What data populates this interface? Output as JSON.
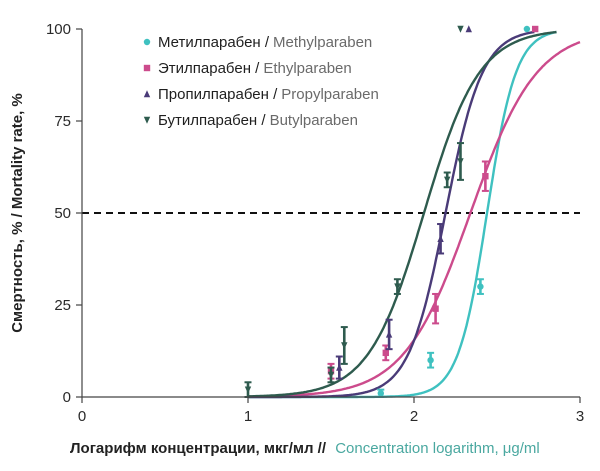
{
  "chart_data": {
    "type": "scatter",
    "xlim": [
      0,
      3
    ],
    "ylim": [
      0,
      100
    ],
    "x_ticks": [
      "0",
      "1",
      "2",
      "3"
    ],
    "y_ticks": [
      "0",
      "25",
      "50",
      "75",
      "100"
    ],
    "xlabel_ru": "Логарифм концентрации, мкг/мл //",
    "xlabel_en": "Concentration logarithm, μg/ml",
    "ylabel": "Смертность, % / Mortality rate, %",
    "reference_line": 50,
    "legend_position": "top-left",
    "series": [
      {
        "name_ru": "Метилпарабен /",
        "name_en": "Methylparaben",
        "color": "#3fc1c0",
        "marker": "circle",
        "curve": {
          "ec50": 2.44,
          "slope": 11.5
        },
        "points": [
          {
            "x": 1.8,
            "y": 1,
            "err": 1
          },
          {
            "x": 2.1,
            "y": 10,
            "err": 2
          },
          {
            "x": 2.4,
            "y": 30,
            "err": 2
          },
          {
            "x": 2.68,
            "y": 100,
            "err": 0
          }
        ]
      },
      {
        "name_ru": "Этилпарабен /",
        "name_en": "Ethylparaben",
        "color": "#cc4b8c",
        "marker": "square",
        "curve": {
          "ec50": 2.34,
          "slope": 5.0
        },
        "points": [
          {
            "x": 1.5,
            "y": 7,
            "err": 2
          },
          {
            "x": 1.83,
            "y": 12,
            "err": 2
          },
          {
            "x": 2.13,
            "y": 24,
            "err": 4
          },
          {
            "x": 2.43,
            "y": 60,
            "err": 4
          },
          {
            "x": 2.73,
            "y": 100,
            "err": 0
          }
        ]
      },
      {
        "name_ru": "Пропилпарабен /",
        "name_en": "Propylparaben",
        "color": "#4a3b78",
        "marker": "triangle",
        "curve": {
          "ec50": 2.19,
          "slope": 9.0
        },
        "points": [
          {
            "x": 1.55,
            "y": 8,
            "err": 3
          },
          {
            "x": 1.85,
            "y": 17,
            "err": 4
          },
          {
            "x": 2.16,
            "y": 43,
            "err": 4
          },
          {
            "x": 2.33,
            "y": 100,
            "err": 0
          }
        ]
      },
      {
        "name_ru": "Бутилпарабен /",
        "name_en": "Butylparaben",
        "color": "#2e5b4e",
        "marker": "triangle-down",
        "curve": {
          "ec50": 2.06,
          "slope": 6.0
        },
        "points": [
          {
            "x": 1.0,
            "y": 2,
            "err": 2
          },
          {
            "x": 1.5,
            "y": 6,
            "err": 2
          },
          {
            "x": 1.58,
            "y": 14,
            "err": 5
          },
          {
            "x": 1.9,
            "y": 30,
            "err": 2
          },
          {
            "x": 2.2,
            "y": 59,
            "err": 2
          },
          {
            "x": 2.28,
            "y": 64,
            "err": 5
          },
          {
            "x": 2.28,
            "y": 100,
            "err": 0
          }
        ]
      }
    ]
  }
}
